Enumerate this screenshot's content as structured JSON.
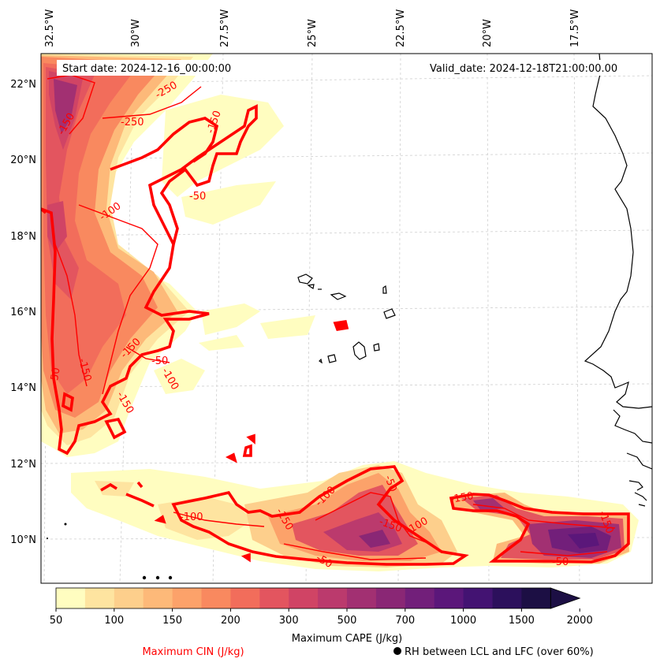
{
  "map": {
    "start_date": "Start date: 2024-12-16_00:00:00",
    "valid_date": "Valid_date: 2024-12-18T21:00:00.00",
    "lon_labels": [
      "32.5°W",
      "30°W",
      "27.5°W",
      "25°W",
      "22.5°W",
      "20°W",
      "17.5°W"
    ],
    "lat_labels": [
      "22°N",
      "20°N",
      "18°N",
      "16°N",
      "14°N",
      "12°N",
      "10°N"
    ],
    "cin_contour_labels": [
      "-250",
      "-150",
      "-250",
      "-150",
      "-50",
      "-100",
      "-150",
      "-50",
      "-100",
      "-150",
      "-50",
      "-150",
      "-100",
      "-150",
      "-100",
      "-50",
      "-50",
      "-150",
      "-100",
      "-150",
      "-150",
      "-50"
    ]
  },
  "colorbar": {
    "ticks": [
      "50",
      "100",
      "150",
      "200",
      "300",
      "500",
      "700",
      "1000",
      "1500",
      "2000"
    ],
    "colors": [
      "#fffdc0",
      "#fee4a0",
      "#fdcf8c",
      "#fdb979",
      "#fca26a",
      "#f9895f",
      "#f26d5b",
      "#e3555f",
      "#d04465",
      "#bb3a6d",
      "#a23072",
      "#8a2775",
      "#721f7a",
      "#5b177a",
      "#431372",
      "#2c105c",
      "#1c0f44"
    ],
    "label": "Maximum CAPE (J/kg)"
  },
  "legend": {
    "cin_label": "Maximum CIN (J/kg)",
    "rh_label": "RH between LCL and LFC (over 60%)",
    "cin_color": "#ff0000"
  }
}
